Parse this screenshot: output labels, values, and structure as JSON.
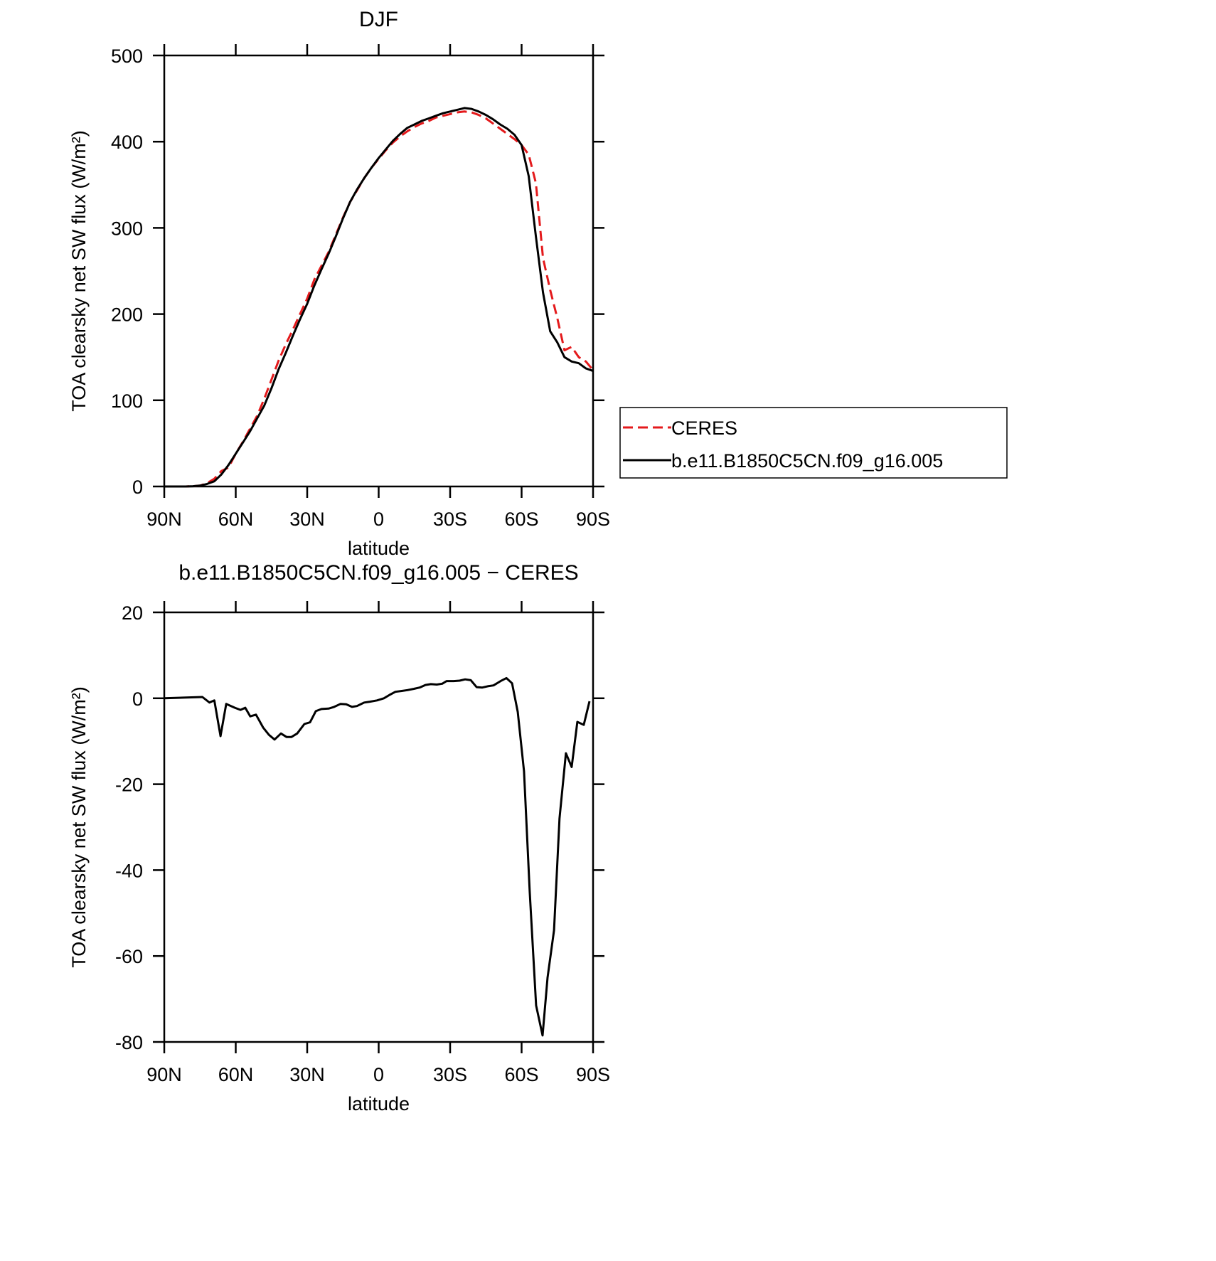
{
  "chart_data": [
    {
      "type": "line",
      "title": "DJF",
      "xlabel": "latitude",
      "ylabel": "TOA clearsky net SW flux (W/m²)",
      "x": [
        90,
        87,
        84,
        81,
        78,
        75,
        72,
        69,
        66,
        63,
        60,
        57,
        54,
        51,
        48,
        45,
        42,
        39,
        36,
        33,
        30,
        27,
        24,
        21,
        18,
        15,
        12,
        9,
        6,
        3,
        0,
        -3,
        -6,
        -9,
        -12,
        -15,
        -18,
        -21,
        -24,
        -27,
        -30,
        -33,
        -36,
        -39,
        -42,
        -45,
        -48,
        -51,
        -54,
        -57,
        -60,
        -63,
        -66,
        -69,
        -72,
        -75,
        -78,
        -81,
        -84,
        -87,
        -90
      ],
      "series": [
        {
          "name": "CERES",
          "color": "#e41a1c",
          "dashed": true,
          "values": [
            0,
            0,
            0,
            0,
            0.3,
            1,
            4,
            9,
            18,
            22,
            38,
            52,
            67,
            82,
            102,
            124,
            146,
            165,
            182,
            200,
            218,
            240,
            256,
            272,
            292,
            312,
            330,
            344,
            358,
            370,
            380,
            390,
            399,
            406,
            412,
            417,
            421,
            424,
            428,
            430,
            432,
            434,
            435,
            434,
            431,
            427,
            421,
            415,
            409,
            403,
            396,
            385,
            352,
            265,
            228,
            195,
            158,
            162,
            150,
            145,
            135
          ]
        },
        {
          "name": "b.e11.B1850C5CN.f09_g16.005",
          "color": "#000000",
          "dashed": false,
          "values": [
            0,
            0,
            0,
            0,
            0.3,
            1,
            3,
            6,
            14,
            25,
            38,
            51,
            64,
            79,
            94,
            114,
            136,
            155,
            175,
            194,
            212,
            233,
            252,
            270,
            290,
            311,
            330,
            345,
            358,
            370,
            381,
            391,
            401,
            409,
            416,
            420,
            424,
            427,
            430,
            433,
            435,
            437,
            439,
            438,
            435,
            431,
            426,
            420,
            415,
            408,
            396,
            360,
            290,
            225,
            180,
            167,
            150,
            145,
            143,
            137,
            134
          ]
        }
      ],
      "xlim": [
        90,
        -90
      ],
      "xticks": [
        {
          "value": 90,
          "label": "90N"
        },
        {
          "value": 60,
          "label": "60N"
        },
        {
          "value": 30,
          "label": "30N"
        },
        0,
        {
          "value": -30,
          "label": "30S"
        },
        {
          "value": -60,
          "label": "60S"
        },
        {
          "value": -90,
          "label": "90S"
        }
      ],
      "ylim": [
        0,
        500
      ],
      "yticks": [
        0,
        100,
        200,
        300,
        400,
        500
      ],
      "legend": "right"
    },
    {
      "type": "line",
      "title": "b.e11.B1850C5CN.f09_g16.005 − CERES",
      "xlabel": "latitude",
      "ylabel": "TOA clearsky net SW flux (W/m²)",
      "x": [
        90,
        74,
        71,
        69,
        66.4,
        64,
        60.4,
        58,
        56,
        53.9,
        51.5,
        48.5,
        46.1,
        43.7,
        41,
        38.7,
        36.6,
        34.2,
        31.2,
        28.8,
        26.4,
        24,
        21,
        18.7,
        16,
        13.6,
        11.2,
        9.1,
        6.1,
        3.7,
        0.7,
        -2.2,
        -4.6,
        -7,
        -9.7,
        -12.1,
        -14.8,
        -17.2,
        -19.6,
        -21.9,
        -24.4,
        -26.7,
        -28.5,
        -31.5,
        -34,
        -36.3,
        -38.7,
        -41.1,
        -43.5,
        -45.8,
        -48.2,
        -51.2,
        -53.6,
        -56,
        -58.4,
        -61,
        -63.4,
        -66.1,
        -68.8,
        -70.9,
        -73.6,
        -75.9,
        -78.6,
        -81,
        -83.4,
        -86.1,
        -88.5
      ],
      "series": [
        {
          "color": "#000000",
          "dashed": false,
          "values": [
            0,
            0.3,
            -1,
            -0.5,
            -8.8,
            -1.3,
            -2.2,
            -2.7,
            -2.2,
            -4.2,
            -3.8,
            -6.8,
            -8.5,
            -9.6,
            -8.2,
            -9,
            -9,
            -8.2,
            -6,
            -5.6,
            -3,
            -2.5,
            -2.4,
            -2,
            -1.3,
            -1.4,
            -2,
            -1.8,
            -1,
            -0.8,
            -0.5,
            0,
            0.8,
            1.5,
            1.7,
            1.9,
            2.2,
            2.5,
            3.1,
            3.3,
            3.2,
            3.4,
            4,
            4,
            4.1,
            4.4,
            4.2,
            2.6,
            2.5,
            2.8,
            3,
            4,
            4.7,
            3.5,
            -3.2,
            -17,
            -45,
            -71.5,
            -78.5,
            -65,
            -54,
            -28,
            -12.8,
            -16,
            -5.5,
            -6.2,
            -0.7
          ]
        }
      ],
      "xlim": [
        90,
        -90
      ],
      "xticks": [
        {
          "value": 90,
          "label": "90N"
        },
        {
          "value": 60,
          "label": "60N"
        },
        {
          "value": 30,
          "label": "30N"
        },
        0,
        {
          "value": -30,
          "label": "30S"
        },
        {
          "value": -60,
          "label": "60S"
        },
        {
          "value": -90,
          "label": "90S"
        }
      ],
      "ylim": [
        -80,
        20
      ],
      "yticks": [
        -80,
        -60,
        -40,
        -20,
        0,
        20
      ]
    }
  ]
}
